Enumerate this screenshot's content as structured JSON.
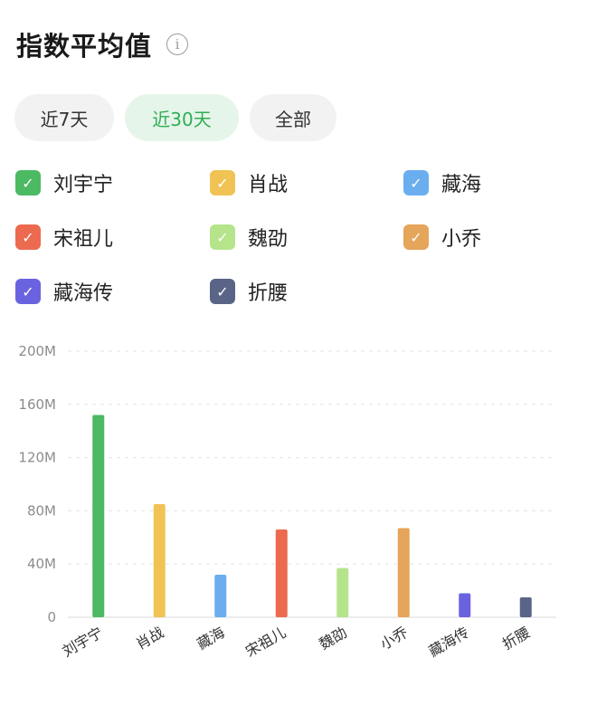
{
  "header": {
    "title": "指数平均值",
    "info_icon": "info-icon"
  },
  "tabs": [
    {
      "label": "近7天",
      "active": false
    },
    {
      "label": "近30天",
      "active": true
    },
    {
      "label": "全部",
      "active": false
    }
  ],
  "legend": [
    {
      "label": "刘宇宁",
      "color": "#4cb963",
      "checked": true
    },
    {
      "label": "肖战",
      "color": "#f0c354",
      "checked": true
    },
    {
      "label": "藏海",
      "color": "#6aaef0",
      "checked": true
    },
    {
      "label": "宋祖儿",
      "color": "#ec6a4f",
      "checked": true
    },
    {
      "label": "魏劭",
      "color": "#b5e48b",
      "checked": true
    },
    {
      "label": "小乔",
      "color": "#e5a55a",
      "checked": true
    },
    {
      "label": "藏海传",
      "color": "#6a63e0",
      "checked": true
    },
    {
      "label": "折腰",
      "color": "#5a6486",
      "checked": true
    }
  ],
  "chart_data": {
    "type": "bar",
    "categories": [
      "刘宇宁",
      "肖战",
      "藏海",
      "宋祖儿",
      "魏劭",
      "小乔",
      "藏海传",
      "折腰"
    ],
    "values": [
      152,
      85,
      32,
      66,
      37,
      67,
      18,
      15
    ],
    "unit": "M",
    "colors": [
      "#4cb963",
      "#f0c354",
      "#6aaef0",
      "#ec6a4f",
      "#b5e48b",
      "#e5a55a",
      "#6a63e0",
      "#5a6486"
    ],
    "yticks": [
      "0",
      "40M",
      "80M",
      "120M",
      "160M",
      "200M"
    ],
    "ylim": [
      0,
      200
    ],
    "grid": true,
    "grid_style": "dashed"
  }
}
